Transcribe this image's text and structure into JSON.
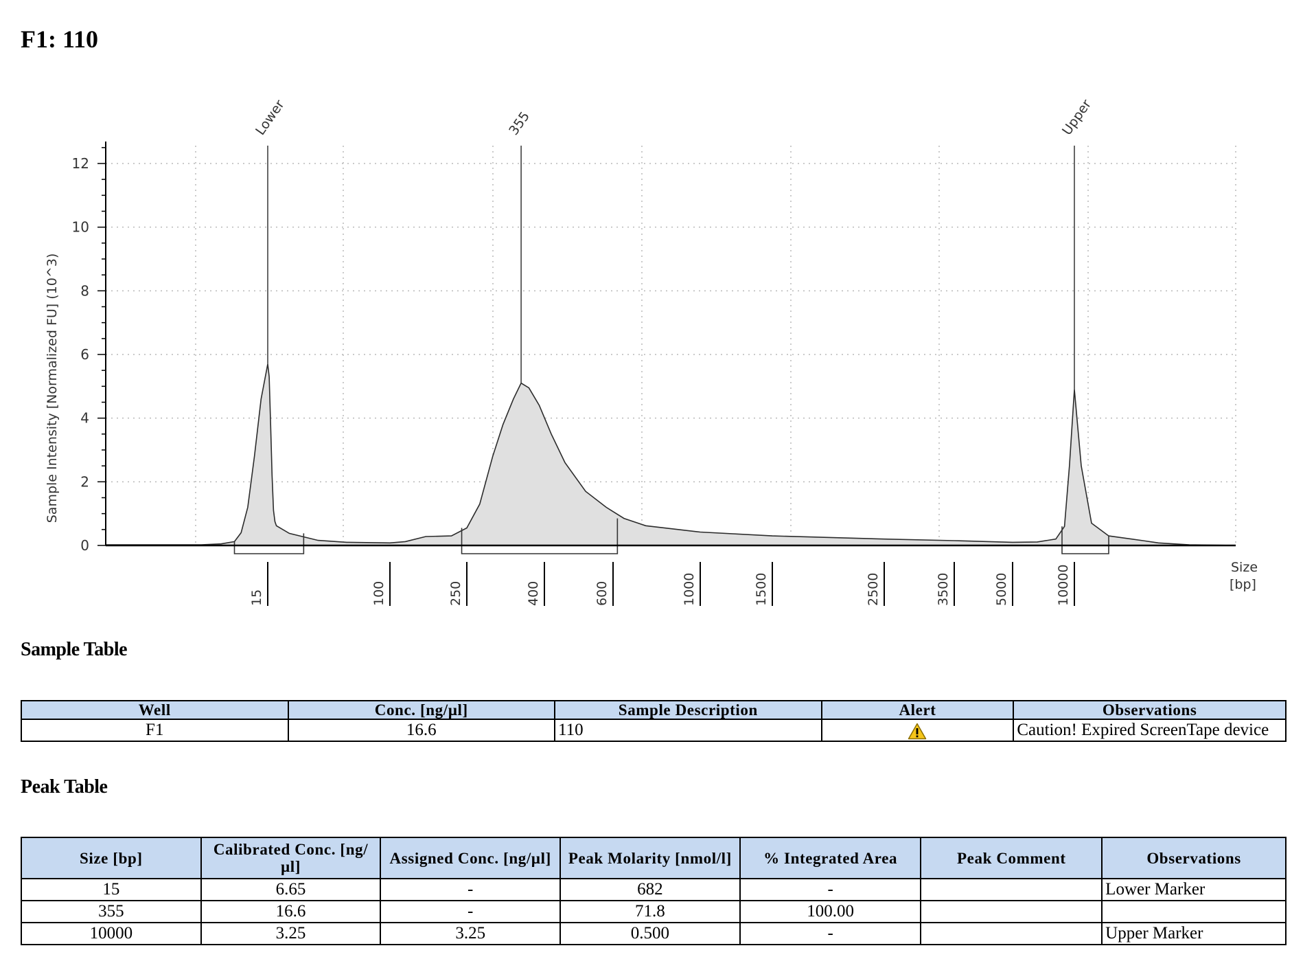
{
  "page": {
    "title": "F1: 110"
  },
  "chart_data": {
    "type": "area",
    "ylabel": "Sample Intensity [Normalized FU] (10^3)",
    "xlabel": "Size [bp]",
    "x_axis_labels": [
      "Size",
      "[bp]"
    ],
    "ylim": [
      0,
      12.7
    ],
    "yticks": [
      0,
      2,
      4,
      6,
      8,
      10,
      12
    ],
    "y_tick_labels": [
      "0",
      "2",
      "4",
      "6",
      "8",
      "10",
      "12"
    ],
    "x_ticks": [
      {
        "label": "15",
        "bp": 15
      },
      {
        "label": "100",
        "bp": 100
      },
      {
        "label": "250",
        "bp": 250
      },
      {
        "label": "400",
        "bp": 400
      },
      {
        "label": "600",
        "bp": 600
      },
      {
        "label": "1000",
        "bp": 1000
      },
      {
        "label": "1500",
        "bp": 1500
      },
      {
        "label": "2500",
        "bp": 2500
      },
      {
        "label": "3500",
        "bp": 3500
      },
      {
        "label": "5000",
        "bp": 5000
      },
      {
        "label": "10000",
        "bp": 10000
      }
    ],
    "grid": "dotted",
    "peaks": [
      {
        "label": "Lower",
        "size_bp": 15,
        "height": 5.7,
        "region": [
          10,
          40
        ]
      },
      {
        "label": "355",
        "size_bp": 355,
        "height": 5.1,
        "region": [
          240,
          620
        ]
      },
      {
        "label": "Upper",
        "size_bp": 10000,
        "height": 4.9,
        "region": [
          9000,
          12000
        ]
      }
    ],
    "trace": [
      [
        5,
        0.02
      ],
      [
        8,
        0.05
      ],
      [
        10,
        0.12
      ],
      [
        11,
        0.4
      ],
      [
        12,
        1.2
      ],
      [
        13,
        2.8
      ],
      [
        14,
        4.6
      ],
      [
        15,
        5.7
      ],
      [
        16,
        5.3
      ],
      [
        17,
        3.8
      ],
      [
        18,
        2.2
      ],
      [
        19,
        1.1
      ],
      [
        20,
        0.75
      ],
      [
        21,
        0.62
      ],
      [
        30,
        0.38
      ],
      [
        50,
        0.16
      ],
      [
        70,
        0.1
      ],
      [
        100,
        0.08
      ],
      [
        130,
        0.12
      ],
      [
        170,
        0.28
      ],
      [
        220,
        0.3
      ],
      [
        250,
        0.55
      ],
      [
        275,
        1.3
      ],
      [
        300,
        2.8
      ],
      [
        320,
        3.8
      ],
      [
        340,
        4.6
      ],
      [
        355,
        5.1
      ],
      [
        370,
        4.95
      ],
      [
        390,
        4.4
      ],
      [
        420,
        3.5
      ],
      [
        460,
        2.6
      ],
      [
        520,
        1.7
      ],
      [
        580,
        1.2
      ],
      [
        650,
        0.85
      ],
      [
        750,
        0.62
      ],
      [
        1000,
        0.42
      ],
      [
        1500,
        0.3
      ],
      [
        2500,
        0.2
      ],
      [
        3500,
        0.15
      ],
      [
        5000,
        0.1
      ],
      [
        7000,
        0.11
      ],
      [
        8500,
        0.2
      ],
      [
        9200,
        0.6
      ],
      [
        9600,
        2.5
      ],
      [
        10000,
        4.9
      ],
      [
        10400,
        2.5
      ],
      [
        11000,
        0.7
      ],
      [
        12000,
        0.3
      ],
      [
        14000,
        0.15
      ],
      [
        16000,
        0.08
      ],
      [
        20000,
        0.02
      ],
      [
        26000,
        0.0
      ]
    ]
  },
  "sample_table": {
    "title": "Sample Table",
    "headers": [
      "Well",
      "Conc. [ng/µl]",
      "Sample Description",
      "Alert",
      "Observations"
    ],
    "rows": [
      {
        "well": "F1",
        "conc": "16.6",
        "description": "110",
        "alert_icon": "warning-icon",
        "observations": "Caution! Expired ScreenTape device"
      }
    ]
  },
  "peak_table": {
    "title": "Peak Table",
    "headers": [
      "Size [bp]",
      "Calibrated Conc. [ng/µl]",
      "Assigned Conc. [ng/µl]",
      "Peak Molarity [nmol/l]",
      "% Integrated Area",
      "Peak Comment",
      "Observations"
    ],
    "rows": [
      [
        "15",
        "6.65",
        "-",
        "682",
        "-",
        "",
        "Lower Marker"
      ],
      [
        "355",
        "16.6",
        "-",
        "71.8",
        "100.00",
        "",
        ""
      ],
      [
        "10000",
        "3.25",
        "3.25",
        "0.500",
        "-",
        "",
        "Upper Marker"
      ]
    ]
  },
  "colors": {
    "header_fill": "#c6d9f1",
    "trace_fill": "#e0e0e0",
    "warning": "#f5c518"
  }
}
